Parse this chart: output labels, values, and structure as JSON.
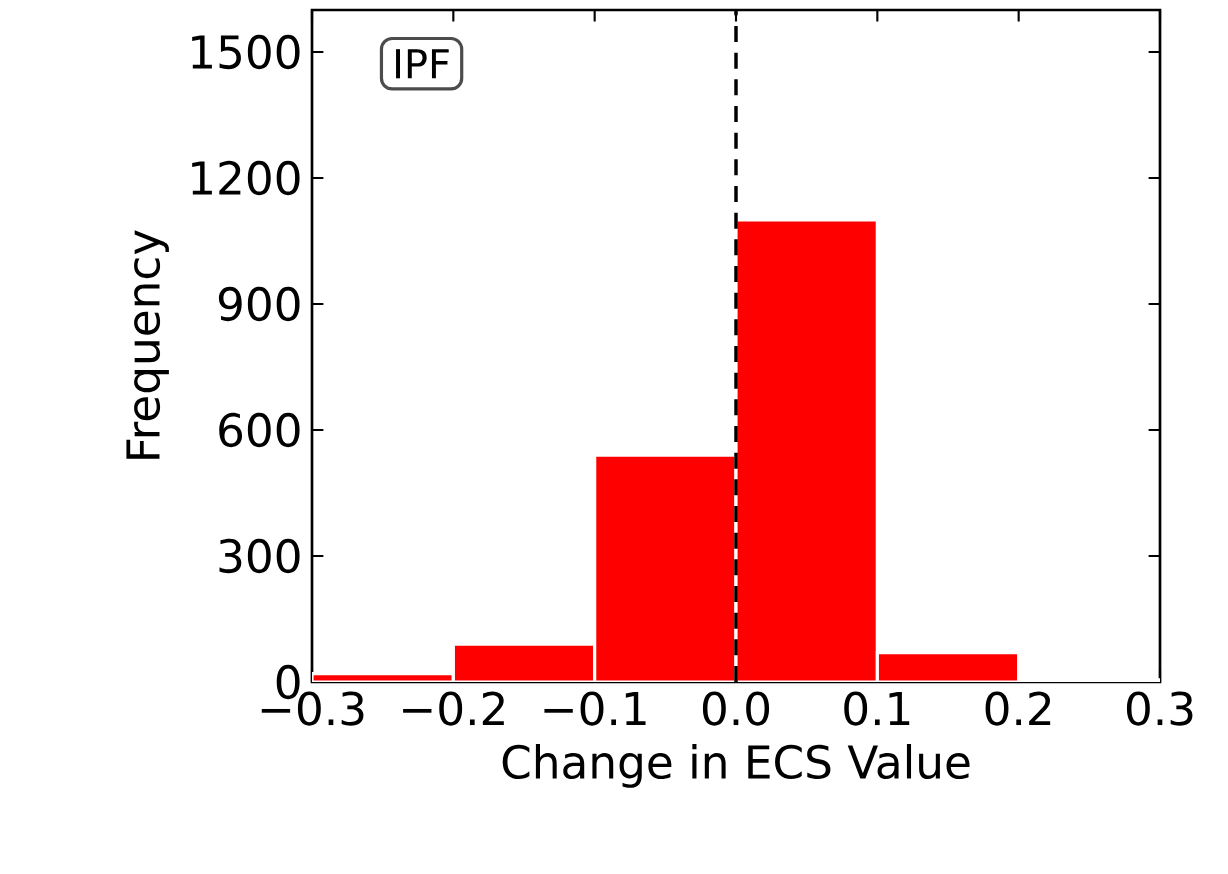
{
  "chart_data": {
    "type": "histogram",
    "xlabel": "Change in ECS Value",
    "ylabel": "Frequency",
    "bins": [
      -0.3,
      -0.2,
      -0.1,
      0.0,
      0.1,
      0.2,
      0.3
    ],
    "values": [
      20,
      90,
      540,
      1100,
      70,
      5
    ],
    "color": "#ff0000",
    "xlim": [
      -0.3,
      0.3
    ],
    "xticks": [
      {
        "value": -0.3,
        "label": "−0.3"
      },
      {
        "value": -0.2,
        "label": "−0.2"
      },
      {
        "value": -0.1,
        "label": "−0.1"
      },
      {
        "value": 0.0,
        "label": "0.0"
      },
      {
        "value": 0.1,
        "label": "0.1"
      },
      {
        "value": 0.2,
        "label": "0.2"
      },
      {
        "value": 0.3,
        "label": "0.3"
      }
    ],
    "ylim": [
      0,
      1600
    ],
    "yticks": [
      0,
      300,
      600,
      900,
      1200,
      1500
    ],
    "ref_lines": [
      {
        "axis": "x",
        "value": 0.0,
        "color": "#000000",
        "line_style": "dashed"
      }
    ],
    "annotations": [
      "IPF"
    ]
  }
}
